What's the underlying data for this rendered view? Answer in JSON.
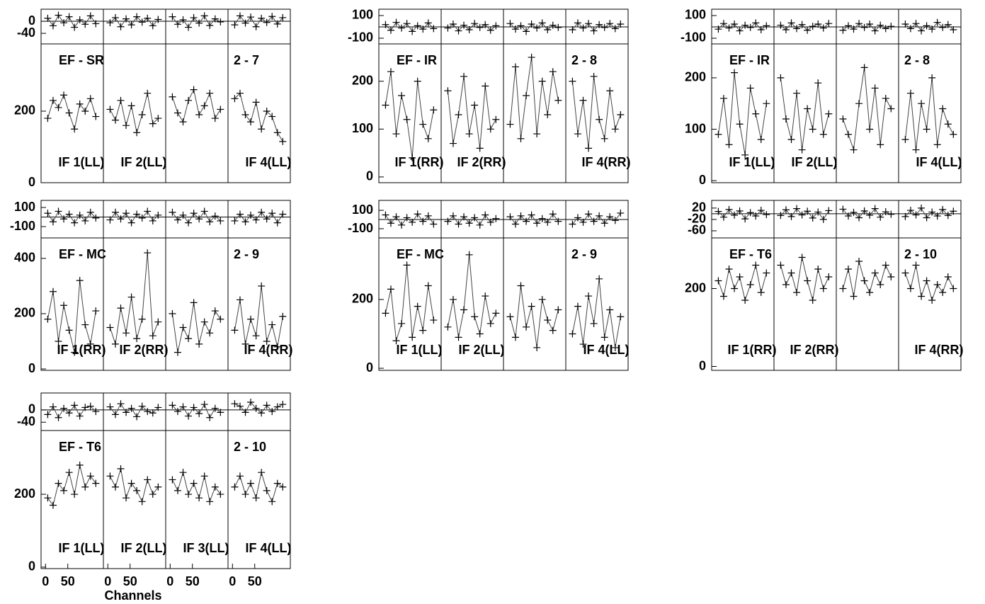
{
  "chart_data": [
    {
      "type": "line",
      "baseline": "EF - SR",
      "baseline_id": "2 - 7",
      "ylim": [
        0,
        388
      ],
      "yticks": [
        0,
        200
      ],
      "residual_ylim": [
        -75,
        40
      ],
      "residual_yticks": [
        0,
        -40
      ],
      "xlim": [
        -10,
        130
      ],
      "x": [
        5,
        17,
        29,
        41,
        53,
        65,
        77,
        89,
        101,
        113
      ],
      "panels": [
        {
          "label": "IF 1(LL)",
          "values": [
            180,
            230,
            210,
            245,
            195,
            150,
            220,
            200,
            235,
            185
          ],
          "residuals": [
            10,
            -15,
            20,
            -5,
            15,
            -20,
            5,
            -10,
            18,
            -8
          ]
        },
        {
          "label": "IF 2(LL)",
          "values": [
            205,
            175,
            230,
            160,
            215,
            140,
            190,
            250,
            165,
            180
          ],
          "residuals": [
            -5,
            12,
            -18,
            8,
            -12,
            15,
            -3,
            10,
            -15,
            6
          ]
        },
        {
          "label": null,
          "values": [
            240,
            195,
            170,
            230,
            260,
            190,
            215,
            250,
            180,
            205
          ],
          "residuals": [
            15,
            -10,
            5,
            -20,
            12,
            -6,
            18,
            -14,
            8,
            -2
          ]
        },
        {
          "label": "IF 4(LL)",
          "values": [
            235,
            250,
            190,
            170,
            225,
            150,
            200,
            185,
            140,
            115
          ],
          "residuals": [
            -12,
            18,
            -6,
            14,
            -18,
            10,
            -4,
            16,
            -9,
            12
          ]
        }
      ]
    },
    {
      "type": "line",
      "baseline": "EF - IR",
      "baseline_id": "2 - 8",
      "ylim": [
        -12,
        278
      ],
      "yticks": [
        0,
        100,
        200
      ],
      "residual_ylim": [
        -150,
        156
      ],
      "residual_yticks": [
        100,
        -100
      ],
      "xlim": [
        -10,
        130
      ],
      "x": [
        5,
        17,
        29,
        41,
        53,
        65,
        77,
        89,
        101,
        113
      ],
      "panels": [
        {
          "label": "IF 1(RR)",
          "values": [
            150,
            220,
            90,
            170,
            120,
            40,
            200,
            110,
            80,
            140
          ],
          "residuals": [
            20,
            -30,
            40,
            -10,
            30,
            -40,
            10,
            -20,
            35,
            -15
          ]
        },
        {
          "label": "IF 2(RR)",
          "values": [
            180,
            70,
            130,
            210,
            90,
            150,
            60,
            190,
            100,
            120
          ],
          "residuals": [
            -10,
            25,
            -35,
            15,
            -25,
            30,
            -5,
            20,
            -30,
            10
          ]
        },
        {
          "label": null,
          "values": [
            110,
            230,
            80,
            170,
            250,
            90,
            200,
            130,
            220,
            160
          ],
          "residuals": [
            30,
            -20,
            10,
            -40,
            25,
            -10,
            35,
            -25,
            15,
            -5
          ]
        },
        {
          "label": "IF 4(RR)",
          "values": [
            200,
            90,
            160,
            60,
            210,
            120,
            80,
            180,
            100,
            130
          ],
          "residuals": [
            -25,
            35,
            -10,
            30,
            -35,
            20,
            -5,
            30,
            -15,
            25
          ]
        }
      ]
    },
    {
      "type": "line",
      "baseline": "EF - IR",
      "baseline_id": "2 - 8",
      "ylim": [
        -4,
        266
      ],
      "yticks": [
        0,
        100,
        200
      ],
      "residual_ylim": [
        -150,
        156
      ],
      "residual_yticks": [
        100,
        -100
      ],
      "xlim": [
        -10,
        130
      ],
      "x": [
        5,
        17,
        29,
        41,
        53,
        65,
        77,
        89,
        101,
        113
      ],
      "panels": [
        {
          "label": "IF 1(LL)",
          "values": [
            90,
            160,
            70,
            210,
            110,
            50,
            180,
            130,
            80,
            150
          ],
          "residuals": [
            -20,
            30,
            -10,
            25,
            -35,
            15,
            -5,
            35,
            -25,
            10
          ]
        },
        {
          "label": "IF 2(LL)",
          "values": [
            200,
            120,
            80,
            170,
            60,
            140,
            100,
            190,
            90,
            130
          ],
          "residuals": [
            15,
            -25,
            35,
            -15,
            20,
            -30,
            5,
            25,
            -10,
            30
          ]
        },
        {
          "label": null,
          "values": [
            120,
            90,
            60,
            150,
            220,
            100,
            180,
            70,
            160,
            140
          ],
          "residuals": [
            -30,
            10,
            -20,
            30,
            -5,
            25,
            -35,
            15,
            -15,
            5
          ]
        },
        {
          "label": "IF 4(LL)",
          "values": [
            80,
            170,
            60,
            150,
            100,
            200,
            70,
            140,
            110,
            90
          ],
          "residuals": [
            25,
            -15,
            30,
            -35,
            10,
            -20,
            40,
            -5,
            20,
            -25
          ]
        }
      ]
    },
    {
      "type": "line",
      "baseline": "EF - MC",
      "baseline_id": "2 - 9",
      "ylim": [
        -5,
        474
      ],
      "yticks": [
        0,
        200,
        400
      ],
      "residual_ylim": [
        -218,
        174
      ],
      "residual_yticks": [
        100,
        -100
      ],
      "xlim": [
        -10,
        130
      ],
      "x": [
        5,
        17,
        29,
        41,
        53,
        65,
        77,
        89,
        101,
        113
      ],
      "panels": [
        {
          "label": "IF 1(RR)",
          "values": [
            180,
            280,
            100,
            230,
            140,
            60,
            320,
            160,
            90,
            210
          ],
          "residuals": [
            40,
            -50,
            60,
            -20,
            30,
            -60,
            20,
            -40,
            50,
            -10
          ]
        },
        {
          "label": "IF 2(RR)",
          "values": [
            150,
            90,
            220,
            130,
            260,
            110,
            180,
            420,
            120,
            170
          ],
          "residuals": [
            -30,
            50,
            -20,
            40,
            -60,
            30,
            -10,
            60,
            -40,
            20
          ]
        },
        {
          "label": null,
          "values": [
            200,
            60,
            150,
            110,
            240,
            90,
            170,
            130,
            210,
            180
          ],
          "residuals": [
            50,
            -30,
            20,
            -60,
            40,
            -20,
            60,
            -50,
            10,
            -40
          ]
        },
        {
          "label": "IF 4(RR)",
          "values": [
            140,
            250,
            90,
            180,
            120,
            300,
            100,
            160,
            80,
            190
          ],
          "residuals": [
            -40,
            30,
            -50,
            20,
            -30,
            50,
            -20,
            40,
            -60,
            30
          ]
        }
      ]
    },
    {
      "type": "line",
      "baseline": "EF - MC",
      "baseline_id": "2 - 9",
      "ylim": [
        -6,
        379
      ],
      "yticks": [
        0,
        200
      ],
      "residual_ylim": [
        -200,
        208
      ],
      "residual_yticks": [
        100,
        -100
      ],
      "xlim": [
        -10,
        130
      ],
      "x": [
        5,
        17,
        29,
        41,
        53,
        65,
        77,
        89,
        101,
        113
      ],
      "panels": [
        {
          "label": "IF 1(LL)",
          "values": [
            160,
            230,
            80,
            130,
            300,
            90,
            180,
            110,
            240,
            140
          ],
          "residuals": [
            50,
            -40,
            30,
            -60,
            20,
            -30,
            60,
            -20,
            40,
            -50
          ]
        },
        {
          "label": "IF 2(LL)",
          "values": [
            120,
            200,
            90,
            170,
            330,
            150,
            100,
            210,
            130,
            160
          ],
          "residuals": [
            -20,
            40,
            -50,
            30,
            -40,
            20,
            -60,
            50,
            -30,
            10
          ]
        },
        {
          "label": null,
          "values": [
            150,
            90,
            240,
            120,
            180,
            60,
            200,
            140,
            110,
            170
          ],
          "residuals": [
            30,
            -50,
            40,
            -20,
            50,
            -40,
            10,
            -30,
            60,
            -20
          ]
        },
        {
          "label": "IF 4(LL)",
          "values": [
            100,
            180,
            70,
            210,
            130,
            260,
            90,
            170,
            60,
            150
          ],
          "residuals": [
            -50,
            20,
            -30,
            60,
            -20,
            40,
            -40,
            30,
            -10,
            70
          ]
        }
      ]
    },
    {
      "type": "line",
      "baseline": "EF - T6",
      "baseline_id": "2 - 10",
      "ylim": [
        -10,
        330
      ],
      "yticks": [
        0,
        200
      ],
      "residual_ylim": [
        -85,
        47
      ],
      "residual_yticks": [
        20,
        -20,
        -60
      ],
      "xlim": [
        -10,
        130
      ],
      "x": [
        5,
        17,
        29,
        41,
        53,
        65,
        77,
        89,
        101,
        113
      ],
      "panels": [
        {
          "label": "IF 1(RR)",
          "values": [
            220,
            180,
            250,
            200,
            230,
            170,
            210,
            260,
            190,
            240
          ],
          "residuals": [
            8,
            -12,
            15,
            -5,
            10,
            -18,
            4,
            -8,
            12,
            -3
          ]
        },
        {
          "label": "IF 2(RR)",
          "values": [
            260,
            210,
            240,
            190,
            280,
            220,
            170,
            250,
            200,
            230
          ],
          "residuals": [
            -6,
            14,
            -10,
            18,
            -4,
            9,
            -15,
            6,
            -20,
            11
          ]
        },
        {
          "label": null,
          "values": [
            200,
            250,
            180,
            270,
            220,
            190,
            240,
            210,
            260,
            230
          ],
          "residuals": [
            16,
            -8,
            5,
            -14,
            10,
            -5,
            18,
            -12,
            7,
            -2
          ]
        },
        {
          "label": "IF 4(RR)",
          "values": [
            240,
            200,
            260,
            180,
            220,
            170,
            210,
            190,
            230,
            200
          ],
          "residuals": [
            -10,
            12,
            -4,
            20,
            -14,
            6,
            -8,
            15,
            -6,
            9
          ]
        }
      ]
    },
    {
      "type": "line",
      "baseline": "EF - T6",
      "baseline_id": "2 - 10",
      "ylim": [
        -4,
        375
      ],
      "yticks": [
        0,
        200
      ],
      "residual_ylim": [
        -67,
        55
      ],
      "residual_yticks": [
        0,
        -40
      ],
      "xlim": [
        -10,
        130
      ],
      "x": [
        5,
        17,
        29,
        41,
        53,
        65,
        77,
        89,
        101,
        113
      ],
      "xticks": [
        0,
        50
      ],
      "xlabel": "Channels",
      "panels": [
        {
          "label": "IF 1(LL)",
          "values": [
            190,
            170,
            230,
            210,
            260,
            200,
            280,
            220,
            250,
            230
          ],
          "residuals": [
            -15,
            10,
            -25,
            5,
            -10,
            15,
            -20,
            8,
            12,
            -5
          ]
        },
        {
          "label": "IF 2(LL)",
          "values": [
            250,
            220,
            270,
            190,
            230,
            210,
            180,
            240,
            200,
            220
          ],
          "residuals": [
            10,
            -15,
            20,
            -8,
            5,
            -22,
            12,
            -5,
            -10,
            8
          ]
        },
        {
          "label": "IF 3(LL)",
          "values": [
            240,
            210,
            260,
            200,
            230,
            190,
            250,
            180,
            220,
            200
          ],
          "residuals": [
            15,
            -5,
            10,
            -20,
            8,
            -12,
            18,
            -25,
            5,
            -8
          ]
        },
        {
          "label": "IF 4(LL)",
          "values": [
            220,
            250,
            200,
            230,
            190,
            260,
            210,
            180,
            230,
            220
          ],
          "residuals": [
            20,
            12,
            -8,
            25,
            5,
            -10,
            15,
            -5,
            10,
            18
          ]
        }
      ]
    }
  ]
}
